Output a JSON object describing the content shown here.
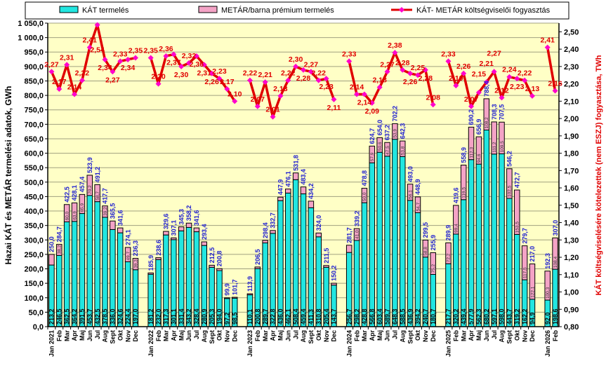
{
  "chart_data": {
    "type": "bar",
    "legend": {
      "position": "top",
      "items": [
        {
          "label": "KÁT termelés",
          "color": "#22e6e0"
        },
        {
          "label": "METÁR/barna prémium termelés",
          "color": "#f4a3c6"
        },
        {
          "label": "KÁT- METÁR költségviselői fogyasztás",
          "color": "#e00000"
        }
      ]
    },
    "ylabel_left": "Hazai KÁT és METÁR termelési adatok, GWh",
    "ylabel_right": "KÁT költségviselésére kötelezettek (nem ESZJ) fogyasztása, TWh",
    "ylim_left": [
      0,
      1050
    ],
    "ylim_right": [
      0.8,
      2.55
    ],
    "yticks_left": [
      "0,0",
      "50,0",
      "100,0",
      "150,0",
      "200,0",
      "250,0",
      "300,0",
      "350,0",
      "400,0",
      "450,0",
      "500,0",
      "550,0",
      "600,0",
      "650,0",
      "700,0",
      "750,0",
      "800,0",
      "850,0",
      "900,0",
      "950,0",
      "1 000,0",
      "1 050,0"
    ],
    "yticks_right": [
      "0,80",
      "0,90",
      "1,00",
      "1,10",
      "1,20",
      "1,30",
      "1,40",
      "1,50",
      "1,60",
      "1,70",
      "1,80",
      "1,90",
      "2,00",
      "2,10",
      "2,20",
      "2,30",
      "2,40",
      "2,50"
    ],
    "grid": true,
    "categories": [
      "Jan 2021",
      "Feb",
      "Mar",
      "Apr",
      "Maj",
      "Jun",
      "Jul",
      "Aug",
      "Sept",
      "Okt",
      "Nov",
      "Dec",
      "Jan 2022",
      "Feb",
      "Mar",
      "Apr",
      "Maj",
      "Jun",
      "Jul",
      "Aug",
      "Sept",
      "Okt",
      "Nov",
      "Dec",
      "Jan 2023",
      "Feb",
      "Mar",
      "Apr",
      "Maj",
      "Jun",
      "Jul",
      "Aug",
      "Sept",
      "Okt",
      "Nov",
      "Dec",
      "Jan 2024",
      "Feb",
      "Mar",
      "Apr",
      "Maj",
      "Jun",
      "Jul",
      "Aug",
      "Sept",
      "Okt",
      "Nov",
      "Dec",
      "Jan 2025",
      "Feb",
      "Mar",
      "Apr",
      "Maj",
      "Jun",
      "Jul",
      "Aug",
      "Sept",
      "Okt",
      "Nov",
      "Dec",
      "Jan 2026",
      "Feb"
    ],
    "series": [
      {
        "name": "KÁT termelés",
        "unit": "GWh",
        "values": [
          213.2,
          246.5,
          362.5,
          364.2,
          391.5,
          453.7,
          432.5,
          378.5,
          336.0,
          324.6,
          224.4,
          197.0,
          181.2,
          232.0,
          317.3,
          301.1,
          331.4,
          343.2,
          328.4,
          280.9,
          205.3,
          194.0,
          97.2,
          98.5,
          110.1,
          200.8,
          289.7,
          322.8,
          436.0,
          462.1,
          508.4,
          459.4,
          411.3,
          310.8,
          205.4,
          143.7,
          256.7,
          298.2,
          428.8,
          566.8,
          603.4,
          589.7,
          648.3,
          588.5,
          436.9,
          394.2,
          240.7,
          180.7,
          217.7,
          320.2,
          439.4,
          577.9,
          562.3,
          680.2,
          597.1,
          598.0,
          443.7,
          319.2,
          162.2,
          94.9,
          92.0,
          198.6
        ]
      },
      {
        "name": "METÁR/barna prémium termelés",
        "unit": "GWh",
        "values": [
          36.8,
          38.2,
          60.0,
          63.9,
          65.9,
          70.2,
          58.7,
          39.2,
          29.5,
          17.0,
          49.7,
          39.3,
          4.7,
          6.6,
          12.3,
          6.0,
          13.9,
          15.0,
          13.2,
          12.5,
          7.2,
          6.8,
          2.7,
          3.2,
          3.8,
          5.7,
          8.7,
          9.9,
          11.9,
          14.0,
          23.4,
          24.0,
          22.9,
          13.2,
          6.1,
          6.5,
          25.0,
          41.0,
          50.0,
          57.9,
          50.6,
          47.5,
          53.9,
          53.8,
          56.1,
          54.7,
          58.8,
          75.2,
          72.2,
          99.4,
          119.5,
          112.3,
          94.6,
          108.2,
          111.2,
          109.5,
          102.5,
          153.5,
          117.5,
          122.1,
          100.3,
          108.4
        ]
      },
      {
        "name": "KÁT- METÁR költségviselői fogyasztás",
        "type": "line",
        "unit": "TWh",
        "axis": "right",
        "values": [
          2.27,
          2.17,
          2.31,
          2.14,
          2.22,
          2.41,
          2.54,
          2.34,
          2.27,
          2.33,
          2.34,
          2.35,
          2.35,
          2.2,
          2.36,
          2.37,
          2.3,
          2.32,
          2.36,
          2.31,
          2.26,
          2.23,
          2.17,
          2.1,
          2.22,
          2.07,
          2.21,
          2.01,
          2.13,
          2.22,
          2.3,
          2.28,
          2.27,
          2.22,
          2.23,
          2.11,
          2.33,
          2.14,
          2.14,
          2.09,
          2.18,
          2.27,
          2.38,
          2.28,
          2.26,
          2.25,
          2.28,
          2.08,
          2.33,
          2.19,
          2.26,
          2.07,
          2.15,
          2.21,
          2.27,
          2.12,
          2.24,
          2.23,
          2.22,
          2.13,
          2.41,
          2.16
        ]
      }
    ]
  }
}
